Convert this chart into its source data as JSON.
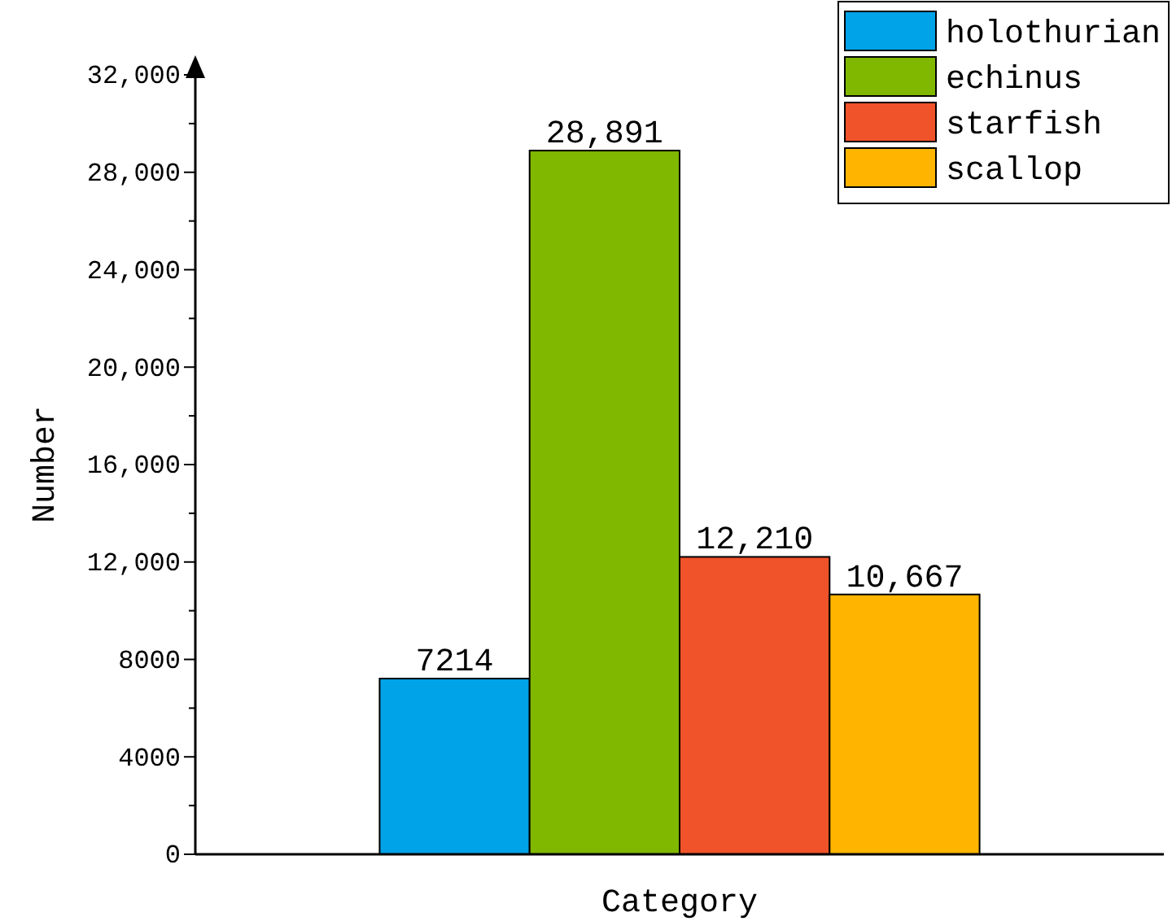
{
  "chart_data": {
    "type": "bar",
    "xlabel": "Category",
    "ylabel": "Number",
    "categories": [
      null
    ],
    "series": [
      {
        "name": "holothurian",
        "color": "#00a2e8",
        "values": [
          7214
        ],
        "value_labels": [
          "7214"
        ]
      },
      {
        "name": "echinus",
        "color": "#80b800",
        "values": [
          28891
        ],
        "value_labels": [
          "28,891"
        ]
      },
      {
        "name": "starfish",
        "color": "#f0522a",
        "values": [
          12210
        ],
        "value_labels": [
          "12,210"
        ]
      },
      {
        "name": "scallop",
        "color": "#ffb400",
        "values": [
          10667
        ],
        "value_labels": [
          "10,667"
        ]
      }
    ],
    "ylim": [
      0,
      32000
    ],
    "yticks": [
      0,
      {
        "value": 2000,
        "label": null
      },
      4000,
      {
        "value": 6000,
        "label": null
      },
      8000,
      {
        "value": 10000,
        "label": null
      },
      {
        "value": 12000,
        "label": "12,000"
      },
      {
        "value": 14000,
        "label": null
      },
      {
        "value": 16000,
        "label": "16,000"
      },
      {
        "value": 18000,
        "label": null
      },
      {
        "value": 20000,
        "label": "20,000"
      },
      {
        "value": 22000,
        "label": null
      },
      {
        "value": 24000,
        "label": "24,000"
      },
      {
        "value": 26000,
        "label": null
      },
      {
        "value": 28000,
        "label": "28,000"
      },
      {
        "value": 30000,
        "label": null
      },
      {
        "value": 32000,
        "label": "32,000"
      }
    ],
    "legend": "top right",
    "grid": false
  }
}
